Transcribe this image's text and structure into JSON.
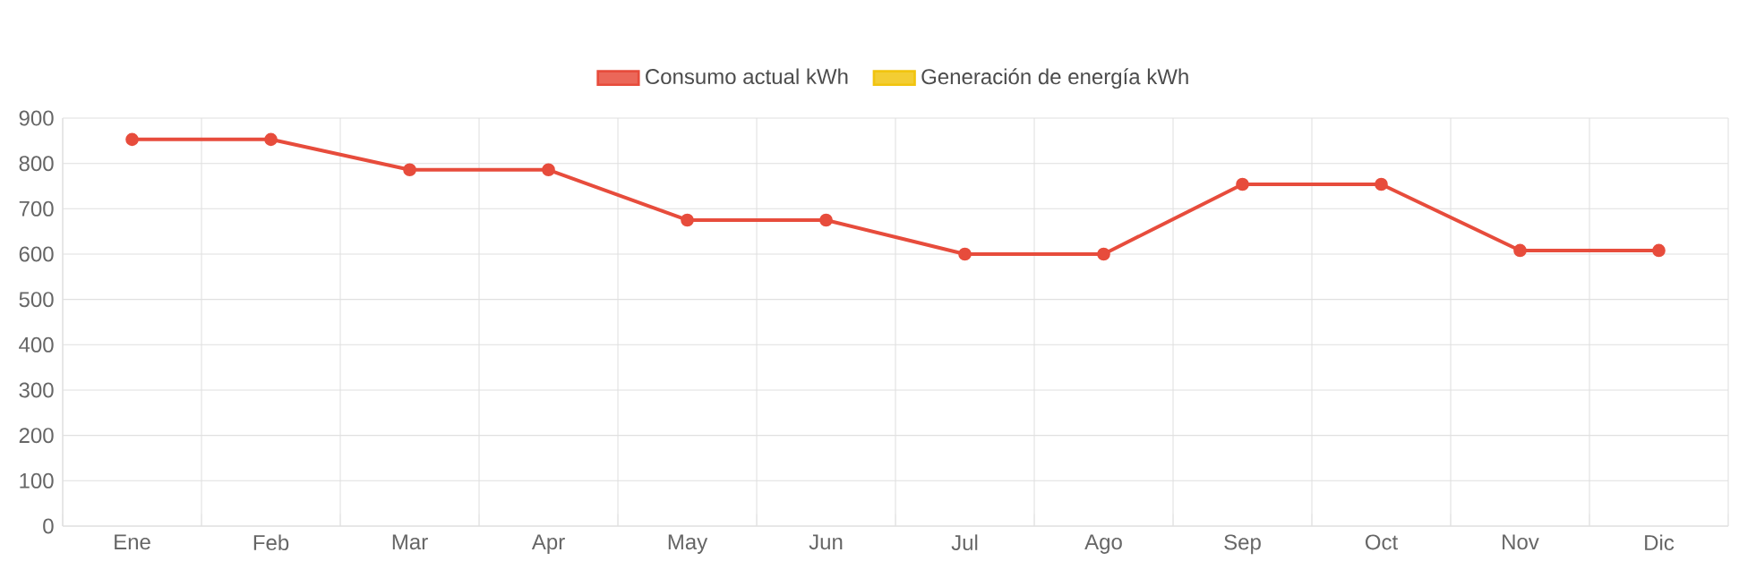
{
  "chart_data": {
    "type": "line",
    "categories": [
      "Ene",
      "Feb",
      "Mar",
      "Apr",
      "May",
      "Jun",
      "Jul",
      "Ago",
      "Sep",
      "Oct",
      "Nov",
      "Dic"
    ],
    "series": [
      {
        "name": "Consumo actual kWh",
        "color": "#e74c3c",
        "values": [
          853,
          853,
          786,
          786,
          675,
          675,
          600,
          600,
          754,
          754,
          608,
          608
        ]
      },
      {
        "name": "Generación de energía kWh",
        "color": "#f1c40f",
        "values": [
          null,
          null,
          null,
          null,
          null,
          null,
          null,
          null,
          null,
          null,
          null,
          null
        ]
      }
    ],
    "ylim": [
      0,
      900
    ],
    "yticks": [
      0,
      100,
      200,
      300,
      400,
      500,
      600,
      700,
      800,
      900
    ],
    "grid": true,
    "legend": "top",
    "marker": "circle",
    "line_style": "solid"
  }
}
